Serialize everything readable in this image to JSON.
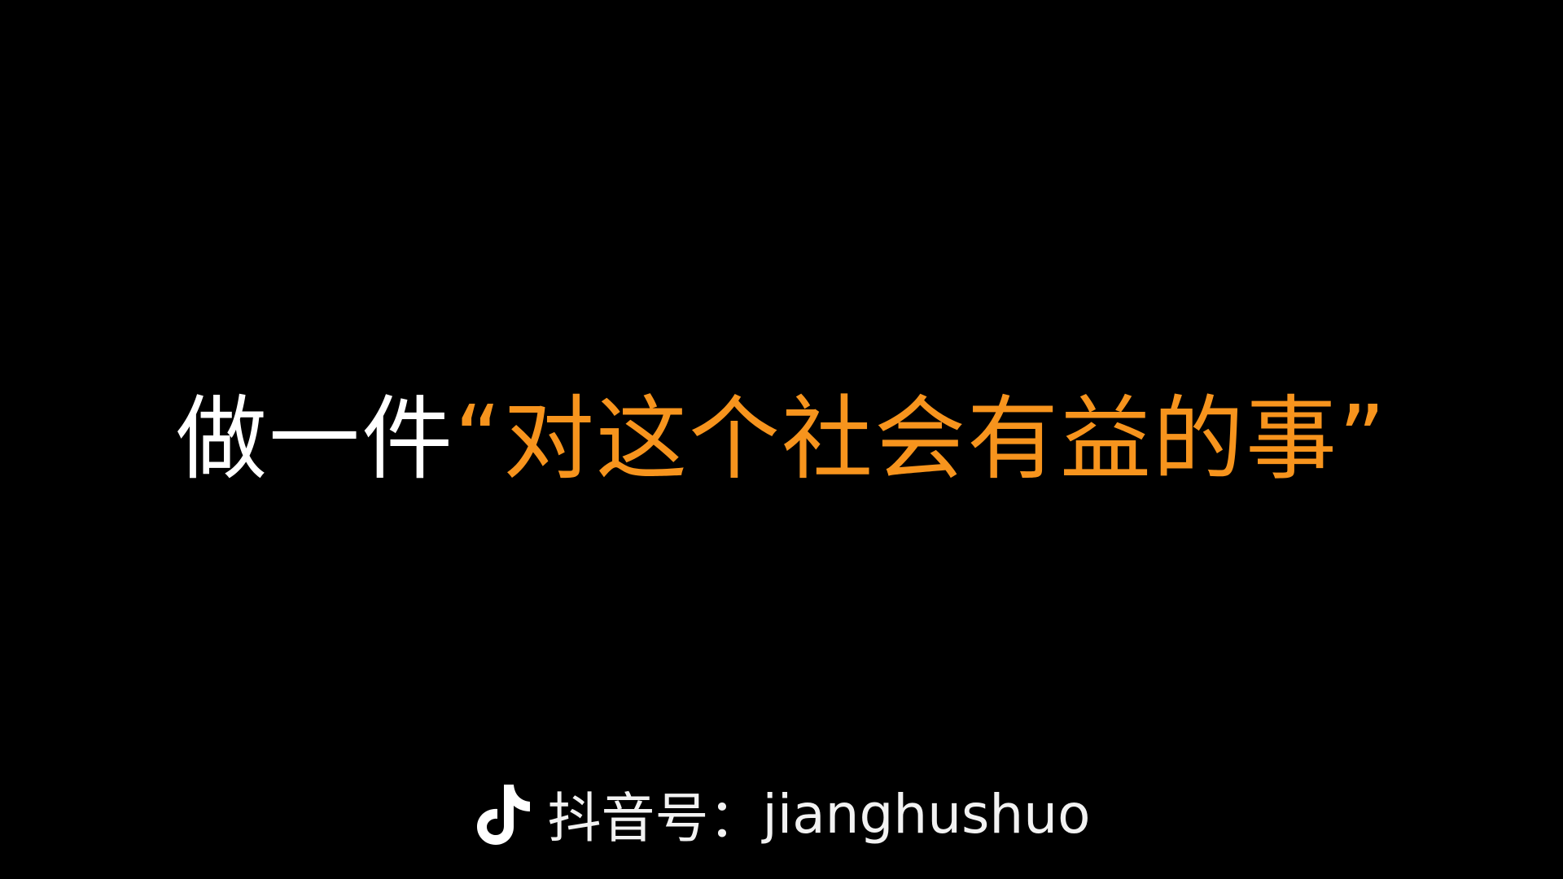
{
  "headline": {
    "prefix": "做一件",
    "highlight": "“对这个社会有益的事”",
    "prefix_color": "#ffffff",
    "highlight_color": "#f7941d"
  },
  "watermark": {
    "icon": "tiktok-icon",
    "label": "抖音号：",
    "handle": "jianghushuo"
  }
}
